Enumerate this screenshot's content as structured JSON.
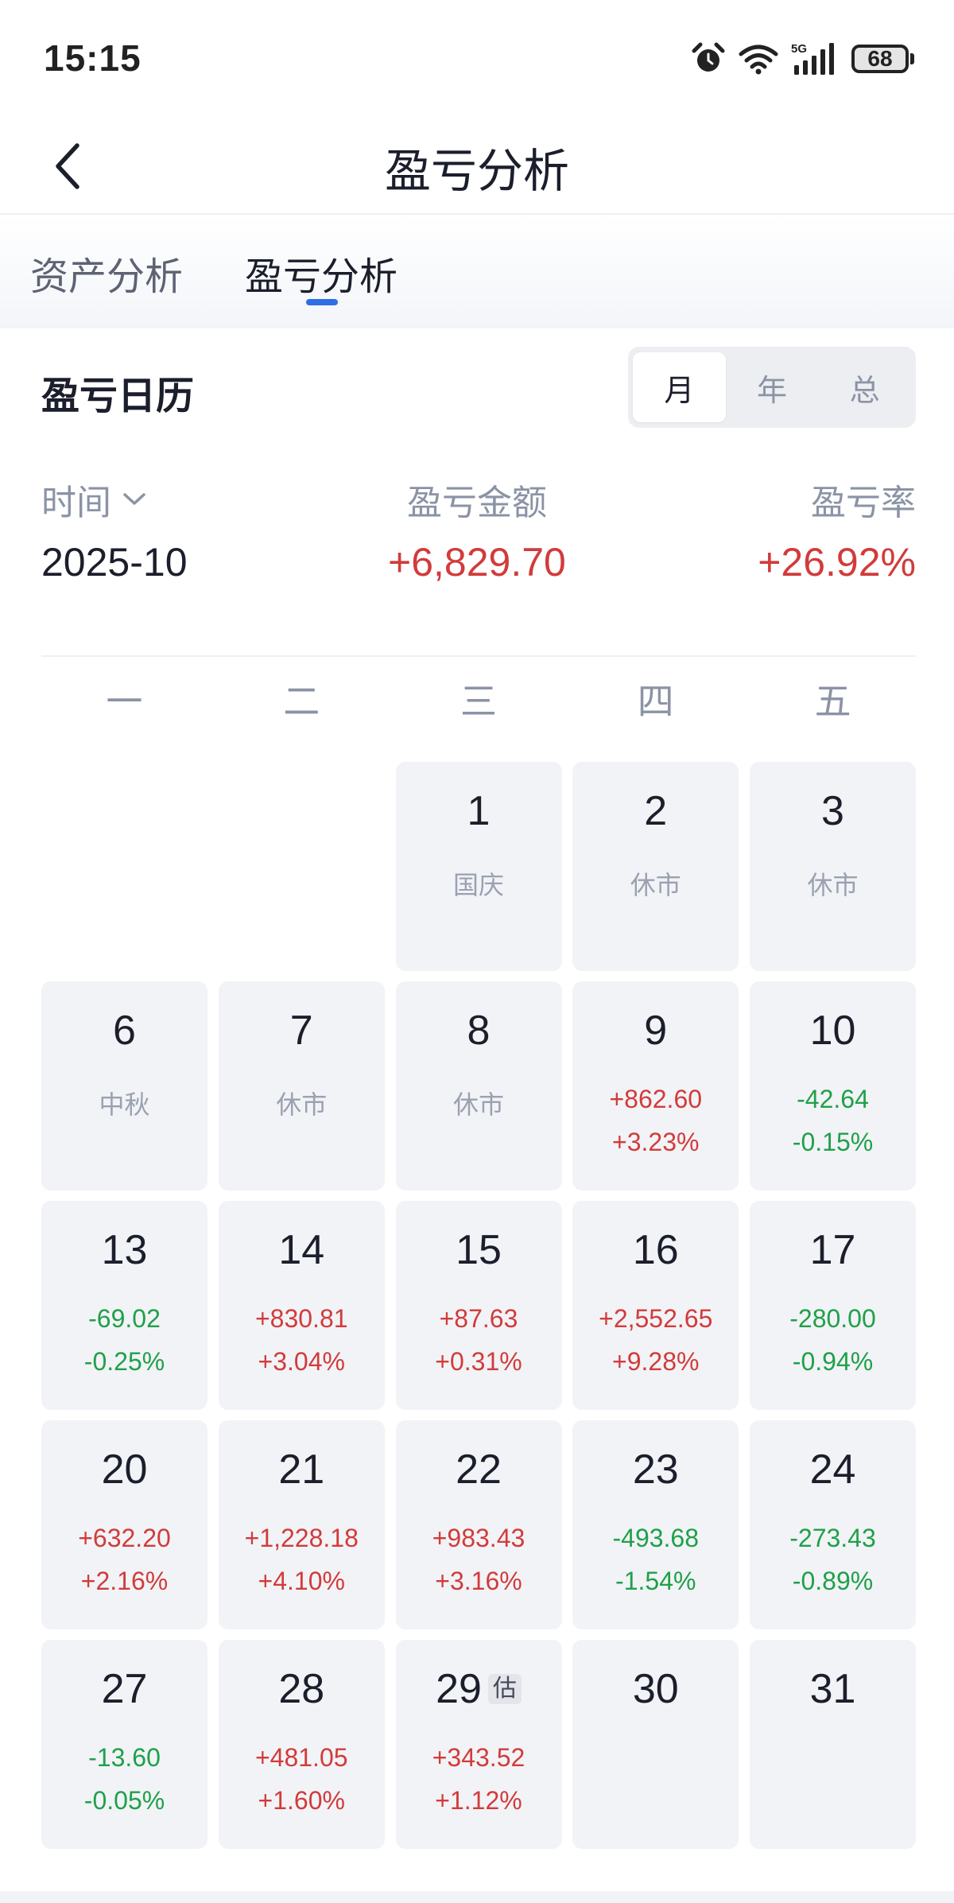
{
  "status_bar": {
    "time": "15:15",
    "battery": "68",
    "network": "5G"
  },
  "nav": {
    "title": "盈亏分析"
  },
  "tabs": [
    {
      "label": "资产分析"
    },
    {
      "label": "盈亏分析"
    }
  ],
  "calendar_header": {
    "title": "盈亏日历",
    "segments": [
      {
        "label": "月"
      },
      {
        "label": "年"
      },
      {
        "label": "总"
      }
    ]
  },
  "summary": {
    "time_label": "时间",
    "period": "2025-10",
    "amount_label": "盈亏金额",
    "amount": "+6,829.70",
    "rate_label": "盈亏率",
    "rate": "+26.92%"
  },
  "weekdays": [
    "一",
    "二",
    "三",
    "四",
    "五"
  ],
  "days": [
    {
      "day": "1",
      "note": "国庆"
    },
    {
      "day": "2",
      "note": "休市"
    },
    {
      "day": "3",
      "note": "休市"
    },
    {
      "day": "6",
      "note": "中秋"
    },
    {
      "day": "7",
      "note": "休市"
    },
    {
      "day": "8",
      "note": "休市"
    },
    {
      "day": "9",
      "amount": "+862.60",
      "rate": "+3.23%"
    },
    {
      "day": "10",
      "amount": "-42.64",
      "rate": "-0.15%"
    },
    {
      "day": "13",
      "amount": "-69.02",
      "rate": "-0.25%"
    },
    {
      "day": "14",
      "amount": "+830.81",
      "rate": "+3.04%"
    },
    {
      "day": "15",
      "amount": "+87.63",
      "rate": "+0.31%"
    },
    {
      "day": "16",
      "amount": "+2,552.65",
      "rate": "+9.28%"
    },
    {
      "day": "17",
      "amount": "-280.00",
      "rate": "-0.94%"
    },
    {
      "day": "20",
      "amount": "+632.20",
      "rate": "+2.16%"
    },
    {
      "day": "21",
      "amount": "+1,228.18",
      "rate": "+4.10%"
    },
    {
      "day": "22",
      "amount": "+983.43",
      "rate": "+3.16%"
    },
    {
      "day": "23",
      "amount": "-493.68",
      "rate": "-1.54%"
    },
    {
      "day": "24",
      "amount": "-273.43",
      "rate": "-0.89%"
    },
    {
      "day": "27",
      "amount": "-13.60",
      "rate": "-0.05%"
    },
    {
      "day": "28",
      "amount": "+481.05",
      "rate": "+1.60%"
    },
    {
      "day": "29",
      "tag": "估",
      "amount": "+343.52",
      "rate": "+1.12%"
    },
    {
      "day": "30"
    },
    {
      "day": "31"
    }
  ],
  "colors": {
    "profit": "#d23b3b",
    "loss": "#1fa04a",
    "accent": "#2f6fe4"
  }
}
